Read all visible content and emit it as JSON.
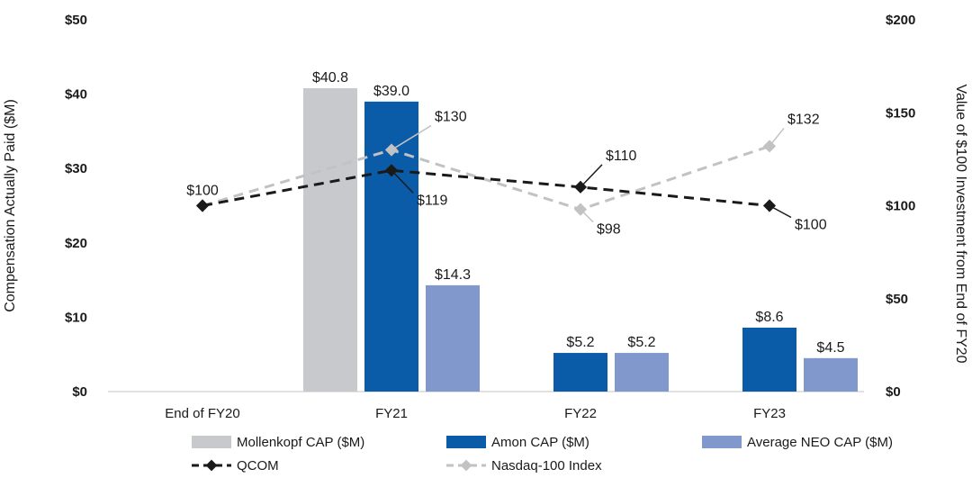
{
  "chart_data": {
    "type": "bar",
    "categories": [
      "End of FY20",
      "FY21",
      "FY22",
      "FY23"
    ],
    "left_axis": {
      "label": "Compensation Actually Paid ($M)",
      "ylim": [
        0,
        50
      ],
      "ticks": [
        0,
        10,
        20,
        30,
        40,
        50
      ],
      "tick_labels": [
        "$0",
        "$10",
        "$20",
        "$30",
        "$40",
        "$50"
      ]
    },
    "right_axis": {
      "label": "Value of $100 Investment from End of FY20",
      "ylim": [
        0,
        200
      ],
      "ticks": [
        0,
        50,
        100,
        150,
        200
      ],
      "tick_labels": [
        "$0",
        "$50",
        "$100",
        "$150",
        "$200"
      ]
    },
    "bar_series": [
      {
        "name": "Mollenkopf CAP ($M)",
        "color": "#c8c9cc",
        "values": [
          null,
          40.8,
          null,
          null
        ],
        "labels": [
          null,
          "$40.8",
          null,
          null
        ]
      },
      {
        "name": "Amon CAP ($M)",
        "color": "#0a5ba8",
        "values": [
          null,
          39.0,
          5.2,
          8.6
        ],
        "labels": [
          null,
          "$39.0",
          "$5.2",
          "$8.6"
        ]
      },
      {
        "name": "Average NEO CAP ($M)",
        "color": "#8198cc",
        "values": [
          null,
          14.3,
          5.2,
          4.5
        ],
        "labels": [
          null,
          "$14.3",
          "$5.2",
          "$4.5"
        ]
      }
    ],
    "line_series": [
      {
        "name": "QCOM",
        "color": "#1a1a1a",
        "values": [
          100,
          119,
          110,
          100
        ],
        "labels": [
          "$100",
          "$119",
          "$110",
          "$100"
        ]
      },
      {
        "name": "Nasdaq-100 Index",
        "color": "#c2c2c2",
        "values": [
          100,
          130,
          98,
          132
        ],
        "labels": [
          "$100",
          "$130",
          "$98",
          "$132"
        ]
      }
    ],
    "legend_position": "bottom"
  }
}
